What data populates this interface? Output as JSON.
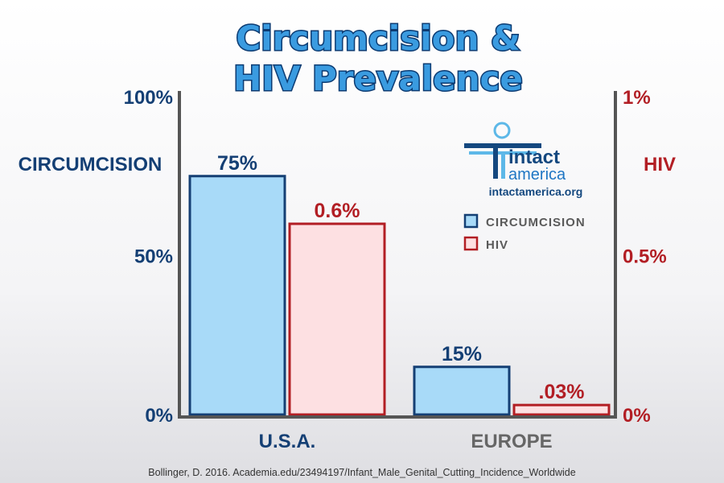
{
  "chart_data": {
    "type": "bar",
    "title_lines": [
      "Circumcision &",
      "HIV Prevalence"
    ],
    "categories": [
      "U.S.A.",
      "EUROPE"
    ],
    "series": [
      {
        "name": "CIRCUMCISION",
        "axis": "left",
        "values": [
          75,
          15
        ],
        "value_labels": [
          "75%",
          "15%"
        ],
        "color": "#a8daf8",
        "edge": "#143f74"
      },
      {
        "name": "HIV",
        "axis": "right",
        "values": [
          0.6,
          0.03
        ],
        "value_labels": [
          "0.6%",
          ".03%"
        ],
        "color": "#fde0e2",
        "edge": "#b21e24"
      }
    ],
    "left_axis": {
      "label": "CIRCUMCISION",
      "range": [
        0,
        100
      ],
      "ticks": [
        0,
        50,
        100
      ],
      "tick_labels": [
        "0%",
        "50%",
        "100%"
      ],
      "color": "#143f74"
    },
    "right_axis": {
      "label": "HIV",
      "range": [
        0,
        1
      ],
      "ticks": [
        0,
        0.5,
        1
      ],
      "tick_labels": [
        "0%",
        "0.5%",
        "1%"
      ],
      "color": "#b21e24"
    },
    "legend": {
      "position": "top-right",
      "entries": [
        "CIRCUMCISION",
        "HIV"
      ]
    },
    "category_colors": [
      "#143f74",
      "#666666"
    ],
    "source": "Bollinger, D. 2016. Academia.edu/23494197/Infant_Male_Genital_Cutting_Incidence_Worldwide"
  },
  "logo": {
    "word1": "intact",
    "word2": "america",
    "url": "intactamerica.org"
  },
  "colors": {
    "axis": "#555555",
    "title_fill": "#3a9be0",
    "title_stroke": "#0c3b72"
  }
}
